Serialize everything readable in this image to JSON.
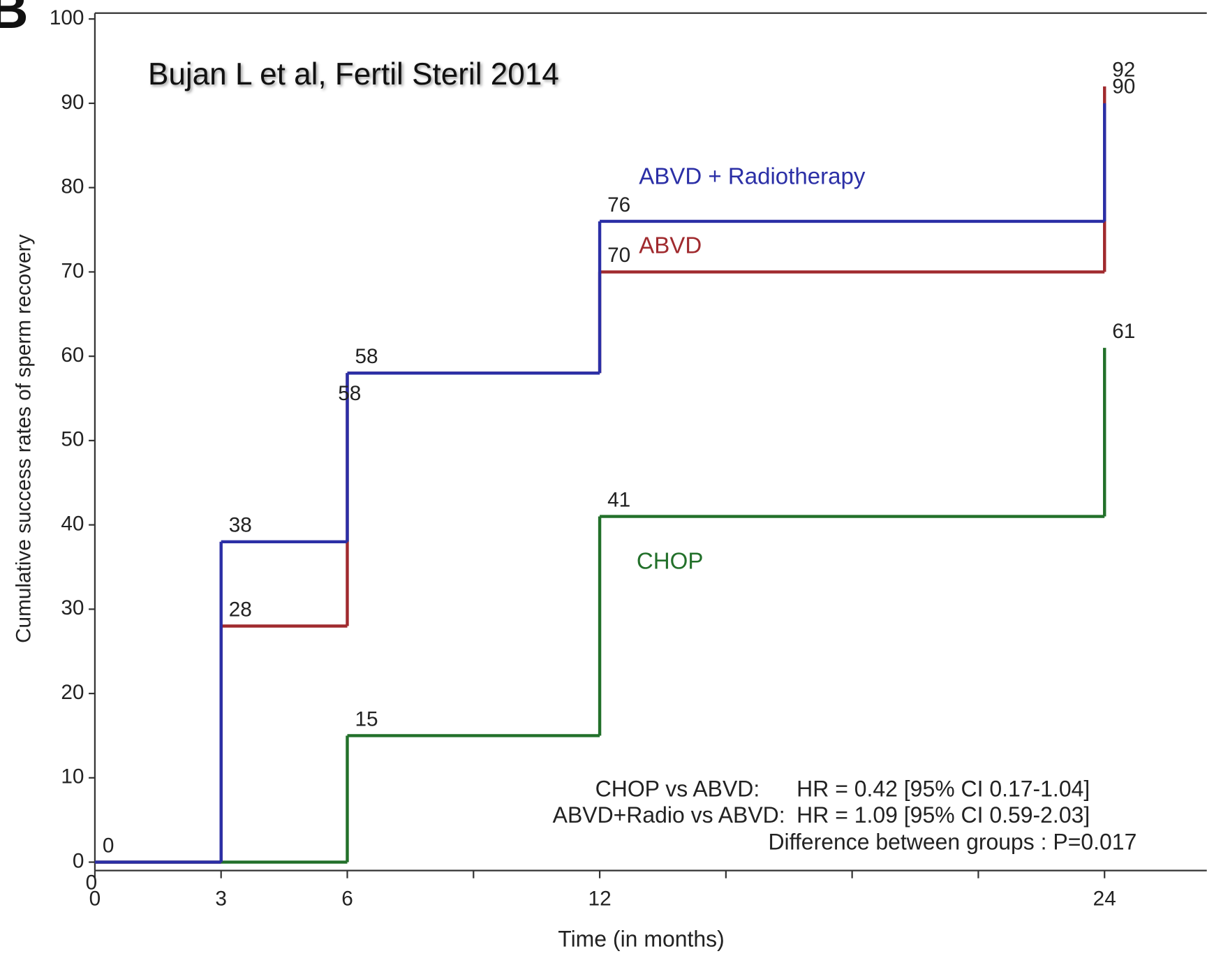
{
  "chart_data": {
    "type": "step",
    "panel_letter": "B",
    "annotation": "Bujan L et al, Fertil Steril 2014",
    "x_label": "Time (in months)",
    "y_label": "Cumulative success rates of sperm recovery",
    "x": [
      0,
      3,
      6,
      12,
      24
    ],
    "series": [
      {
        "name": "ABVD + Radiotherapy",
        "color": "#2b2fa6",
        "values": [
          0,
          38,
          58,
          76,
          90
        ],
        "value_labels": [
          "0",
          "38",
          "58",
          "76",
          "90"
        ]
      },
      {
        "name": "ABVD",
        "color": "#a02a2e",
        "values": [
          0,
          28,
          58,
          70,
          92
        ],
        "value_labels": [
          "0",
          "28",
          "58",
          "70",
          "92"
        ]
      },
      {
        "name": "CHOP",
        "color": "#22702a",
        "values": [
          0,
          0,
          15,
          41,
          61
        ],
        "value_labels": [
          null,
          null,
          "15",
          "41",
          "61"
        ]
      }
    ],
    "xlim": [
      0,
      26.43
    ],
    "ylim": [
      -1,
      100.7
    ],
    "xticks": [
      0,
      3,
      6,
      12,
      24
    ],
    "xminor_ticks": [
      9,
      15,
      18,
      21
    ],
    "yticks": [
      0,
      10,
      20,
      30,
      40,
      50,
      60,
      70,
      80,
      90,
      100
    ],
    "stats": [
      {
        "comparison": "CHOP vs ABVD:",
        "result": "HR = 0.42 [95% CI 0.17-1.04]"
      },
      {
        "comparison": "ABVD+Radio vs ABVD:",
        "result": "HR = 1.09 [95% CI 0.59-2.03]"
      }
    ],
    "p_value_text": "Difference between groups : P=0.017"
  }
}
